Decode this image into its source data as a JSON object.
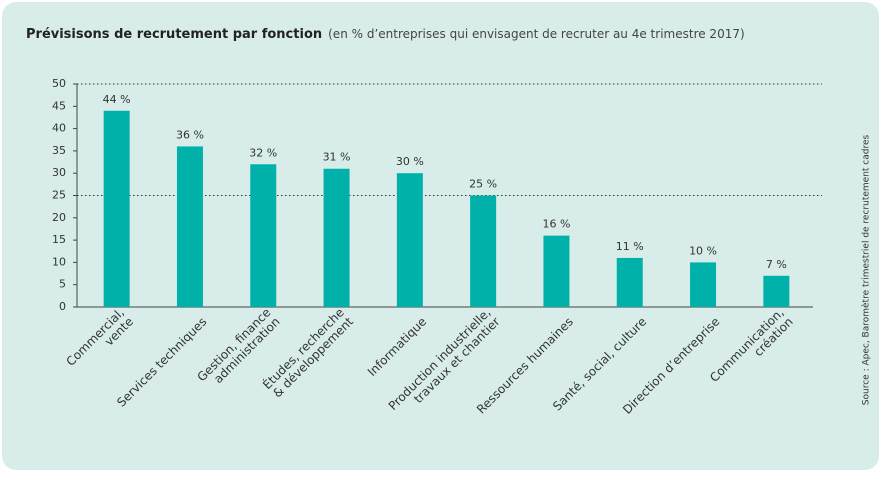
{
  "chart_data": {
    "type": "bar",
    "title": "Prévisisons de recrutement par fonction",
    "subtitle": "(en % d’entreprises qui envisagent de recruter au 4e trimestre 2017)",
    "source": "Source : Apec, Baromètre trimestriel de recrutement cadres",
    "categories": [
      [
        "Commercial,",
        "vente"
      ],
      [
        "Services techniques"
      ],
      [
        "Gestion, finance",
        "administration"
      ],
      [
        "Études, recherche",
        "& développement"
      ],
      [
        "Informatique"
      ],
      [
        "Production industrielle,",
        "travaux et chantier"
      ],
      [
        "Ressources humaines"
      ],
      [
        "Santé, social, culture"
      ],
      [
        "Direction d’entreprise"
      ],
      [
        "Communication,",
        "création"
      ]
    ],
    "values": [
      44,
      36,
      32,
      31,
      30,
      25,
      16,
      11,
      10,
      7
    ],
    "value_labels": [
      "44 %",
      "36 %",
      "32 %",
      "31 %",
      "30 %",
      "25 %",
      "16 %",
      "11 %",
      "10 %",
      "7 %"
    ],
    "color": "#00b1a9",
    "ylim": [
      0,
      50
    ],
    "yticks": [
      0,
      5,
      10,
      15,
      20,
      25,
      30,
      35,
      40,
      45,
      50
    ],
    "dotted_lines": [
      25,
      50
    ]
  }
}
